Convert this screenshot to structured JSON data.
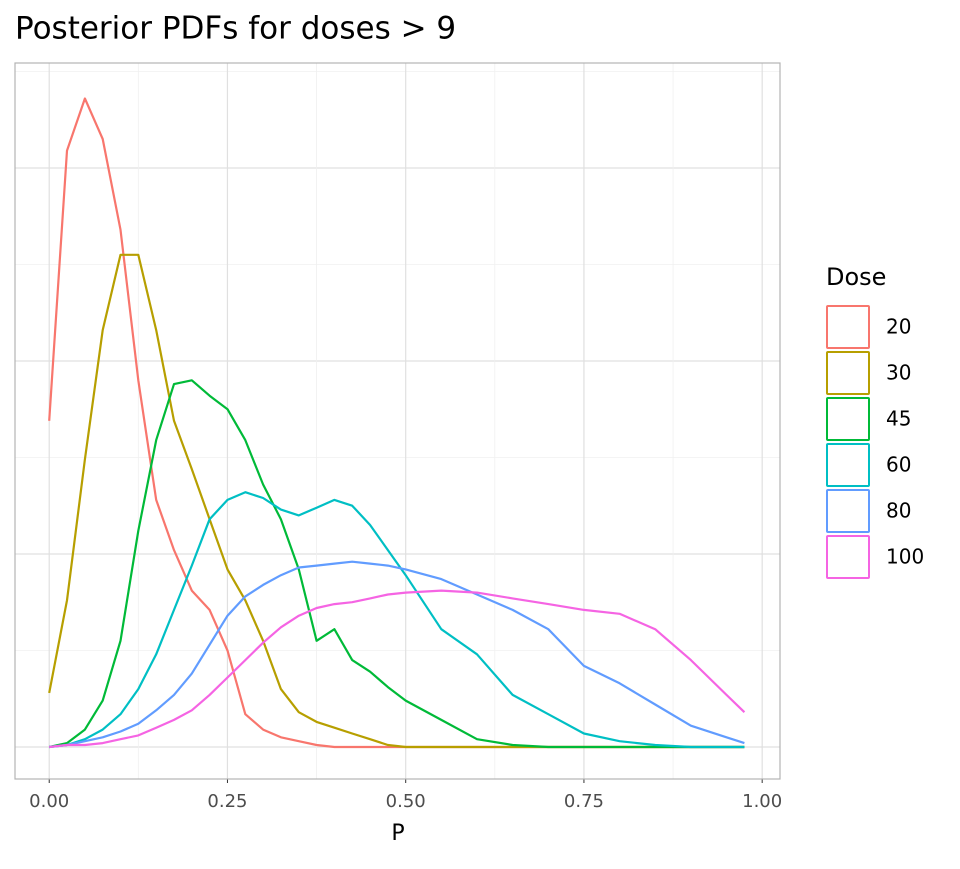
{
  "chart_data": {
    "type": "line",
    "title": "Posterior PDFs for doses > 9",
    "x_label": "P",
    "legend_title": "Dose",
    "legend": "right",
    "grid": true,
    "x": [
      0,
      0.025,
      0.05,
      0.075,
      0.1,
      0.125,
      0.15,
      0.175,
      0.2,
      0.225,
      0.25,
      0.275,
      0.3,
      0.325,
      0.35,
      0.375,
      0.4,
      0.425,
      0.45,
      0.475,
      0.5,
      0.55,
      0.6,
      0.65,
      0.7,
      0.75,
      0.8,
      0.85,
      0.9,
      0.95,
      0.975
    ],
    "xlim": [
      -0.048,
      1.025
    ],
    "xticks": [
      {
        "value": 0,
        "label": "0.00"
      },
      {
        "value": 0.25,
        "label": "0.25"
      },
      {
        "value": 0.5,
        "label": "0.50"
      },
      {
        "value": 0.75,
        "label": "0.75"
      },
      {
        "value": 1,
        "label": "1.00"
      }
    ],
    "ylim": [
      -0.166,
      3.544
    ],
    "ygrid": [
      0,
      0.5,
      1,
      1.5,
      2,
      2.5,
      3,
      3.5
    ],
    "series": [
      {
        "name": "20",
        "color": "#f8766d",
        "values": [
          1.69,
          3.09,
          3.36,
          3.15,
          2.68,
          1.9,
          1.28,
          1.02,
          0.81,
          0.71,
          0.5,
          0.17,
          0.09,
          0.05,
          0.03,
          0.01,
          0,
          0,
          0,
          0,
          0,
          0,
          0,
          0,
          0,
          0,
          0,
          0,
          0,
          0,
          0
        ]
      },
      {
        "name": "30",
        "color": "#b79f00",
        "values": [
          0.28,
          0.76,
          1.49,
          2.16,
          2.55,
          2.55,
          2.16,
          1.69,
          1.44,
          1.18,
          0.92,
          0.76,
          0.55,
          0.3,
          0.18,
          0.13,
          0.1,
          0.07,
          0.04,
          0.01,
          0,
          0,
          0,
          0,
          0,
          0,
          0,
          0,
          0,
          0,
          0
        ]
      },
      {
        "name": "45",
        "color": "#00ba38",
        "values": [
          0,
          0.02,
          0.09,
          0.24,
          0.55,
          1.12,
          1.59,
          1.88,
          1.9,
          1.82,
          1.75,
          1.59,
          1.36,
          1.18,
          0.92,
          0.55,
          0.61,
          0.45,
          0.39,
          0.31,
          0.24,
          0.14,
          0.04,
          0.01,
          0,
          0,
          0,
          0,
          0,
          0,
          0
        ]
      },
      {
        "name": "60",
        "color": "#00bfc4",
        "values": [
          0,
          0.01,
          0.04,
          0.09,
          0.17,
          0.3,
          0.48,
          0.71,
          0.94,
          1.18,
          1.28,
          1.32,
          1.29,
          1.23,
          1.2,
          1.24,
          1.28,
          1.25,
          1.15,
          1.02,
          0.89,
          0.61,
          0.48,
          0.27,
          0.17,
          0.07,
          0.03,
          0.01,
          0,
          0,
          0
        ]
      },
      {
        "name": "80",
        "color": "#619cff",
        "values": [
          0,
          0.01,
          0.03,
          0.05,
          0.08,
          0.12,
          0.19,
          0.27,
          0.38,
          0.53,
          0.68,
          0.78,
          0.84,
          0.89,
          0.93,
          0.94,
          0.95,
          0.96,
          0.95,
          0.94,
          0.92,
          0.87,
          0.79,
          0.71,
          0.61,
          0.42,
          0.33,
          0.22,
          0.11,
          0.05,
          0.02
        ]
      },
      {
        "name": "100",
        "color": "#f564e3",
        "values": [
          0,
          0.01,
          0.01,
          0.02,
          0.04,
          0.06,
          0.1,
          0.14,
          0.19,
          0.27,
          0.36,
          0.45,
          0.54,
          0.62,
          0.68,
          0.72,
          0.74,
          0.75,
          0.77,
          0.79,
          0.8,
          0.81,
          0.8,
          0.77,
          0.74,
          0.71,
          0.69,
          0.61,
          0.45,
          0.27,
          0.18
        ]
      }
    ]
  }
}
